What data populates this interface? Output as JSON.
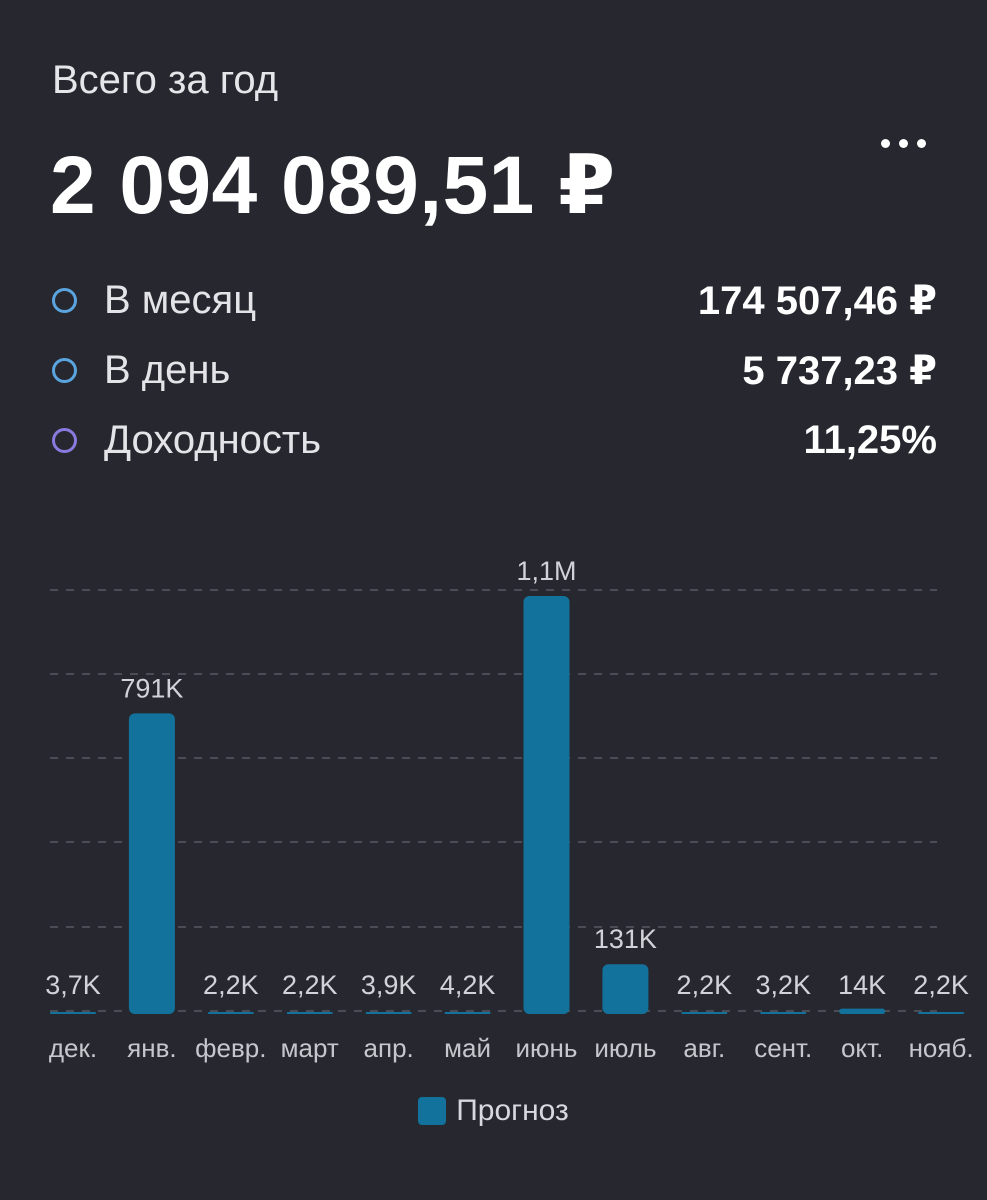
{
  "header": {
    "subtitle": "Всего за год",
    "total": "2 094 089,51 ₽",
    "more_icon": "more-horizontal-icon"
  },
  "stats": [
    {
      "label": "В месяц",
      "value": "174 507,46 ₽",
      "color": "#5aa5e0",
      "icon": "circle-outline-icon"
    },
    {
      "label": "В день",
      "value": "5 737,23 ₽",
      "color": "#5aa5e0",
      "icon": "circle-outline-icon"
    },
    {
      "label": "Доходность",
      "value": "11,25%",
      "color": "#8a7ae0",
      "icon": "circle-outline-icon"
    }
  ],
  "chart_data": {
    "type": "bar",
    "categories": [
      "дек.",
      "янв.",
      "февр.",
      "март",
      "апр.",
      "май",
      "июнь",
      "июль",
      "авг.",
      "сент.",
      "окт.",
      "нояб."
    ],
    "series": [
      {
        "name": "Прогноз",
        "values": [
          3700,
          791000,
          2200,
          2200,
          3900,
          4200,
          1100000,
          131000,
          2200,
          3200,
          14000,
          2200
        ],
        "labels": [
          "3,7K",
          "791K",
          "2,2K",
          "2,2K",
          "3,9K",
          "4,2K",
          "1,1M",
          "131K",
          "2,2K",
          "3,2K",
          "14K",
          "2,2K"
        ],
        "color": "#12729b"
      }
    ],
    "ylim": [
      0,
      1100000
    ],
    "grid": true,
    "legend": "bottom-center",
    "title": "",
    "xlabel": "",
    "ylabel": ""
  }
}
